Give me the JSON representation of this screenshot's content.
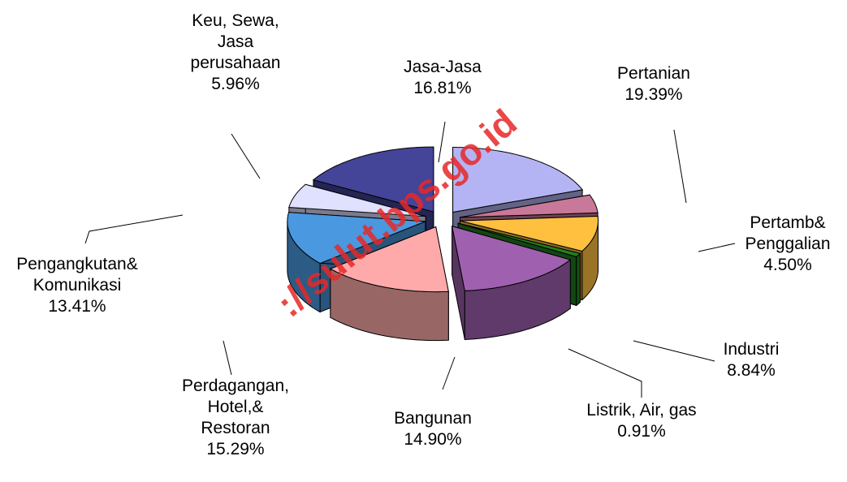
{
  "chart_data": {
    "type": "pie",
    "categories": [
      "Pertanian",
      "Pertamb&\nPenggalian",
      "Industri",
      "Listrik, Air, gas",
      "Bangunan",
      "Perdagangan,\nHotel,&\nRestoran",
      "Pengangkutan&\nKomunikasi",
      "Keu, Sewa,\nJasa\nperusahaan",
      "Jasa-Jasa"
    ],
    "values": [
      19.39,
      4.5,
      8.84,
      0.91,
      14.9,
      15.29,
      13.41,
      5.96,
      16.81
    ],
    "value_labels": [
      "19.39%",
      "4.50%",
      "8.84%",
      "0.91%",
      "14.90%",
      "15.29%",
      "13.41%",
      "5.96%",
      "16.81%"
    ],
    "colors": [
      "#b4b4f4",
      "#c87898",
      "#ffc040",
      "#208020",
      "#a060b0",
      "#ffaaaa",
      "#4a98e0",
      "#e0e0ff",
      "#444498"
    ],
    "watermark": "://sulut.bps.go.id"
  }
}
